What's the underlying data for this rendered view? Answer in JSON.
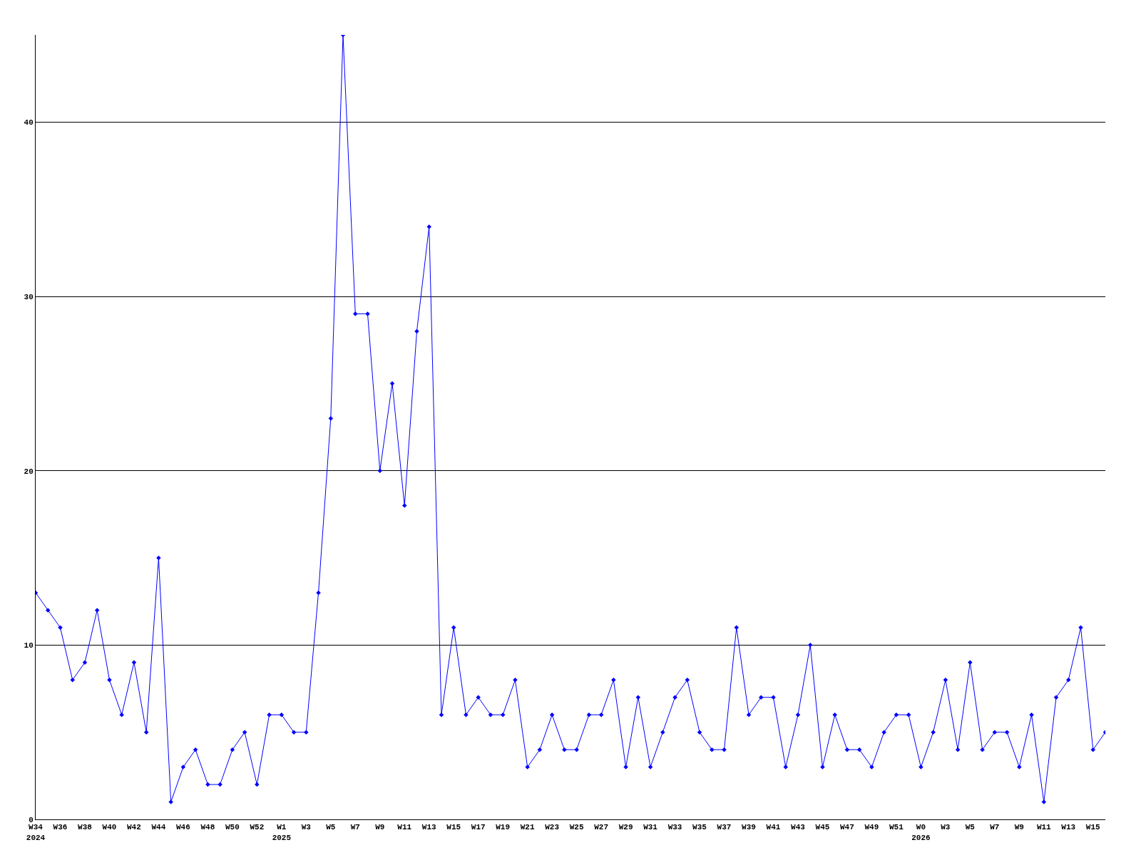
{
  "chart_data": {
    "type": "line",
    "categories": [
      "W34\n2024",
      null,
      "W36",
      null,
      "W38",
      null,
      "W40",
      null,
      "W42",
      null,
      "W44",
      null,
      "W46",
      null,
      "W48",
      null,
      "W50",
      null,
      "W52",
      null,
      "W1\n2025",
      null,
      "W3",
      null,
      "W5",
      null,
      "W7",
      null,
      "W9",
      null,
      "W11",
      null,
      "W13",
      null,
      "W15",
      null,
      "W17",
      null,
      "W19",
      null,
      "W21",
      null,
      "W23",
      null,
      "W25",
      null,
      "W27",
      null,
      "W29",
      null,
      "W31",
      null,
      "W33",
      null,
      "W35",
      null,
      "W37",
      null,
      "W39",
      null,
      "W41",
      null,
      "W43",
      null,
      "W45",
      null,
      "W47",
      null,
      "W49",
      null,
      "W51",
      null,
      "W0\n2026",
      null,
      "W3",
      null,
      "W5",
      null,
      "W7",
      null,
      "W9",
      null,
      "W11",
      null,
      "W13",
      null,
      "W15",
      null
    ],
    "series": [
      {
        "color": "#0000ff",
        "values": [
          13,
          12,
          11,
          8,
          9,
          12,
          8,
          6,
          9,
          5,
          15,
          1,
          3,
          4,
          2,
          2,
          4,
          5,
          2,
          6,
          6,
          5,
          5,
          13,
          23,
          45,
          29,
          29,
          20,
          25,
          18,
          28,
          34,
          6,
          11,
          6,
          7,
          6,
          6,
          8,
          3,
          4,
          6,
          4,
          4,
          6,
          6,
          8,
          3,
          7,
          3,
          5,
          7,
          8,
          5,
          4,
          4,
          11,
          6,
          7,
          7,
          3,
          6,
          10,
          3,
          6,
          4,
          4,
          3,
          5,
          6,
          6,
          3,
          5,
          8,
          4,
          9,
          4,
          5,
          5,
          3,
          6,
          1,
          7,
          8,
          11,
          4,
          5
        ]
      }
    ],
    "ylim": [
      0,
      45
    ],
    "yticks": [
      0,
      10,
      20,
      30,
      40
    ],
    "grid": "y",
    "marker": "diamond",
    "line_style": "solid"
  }
}
